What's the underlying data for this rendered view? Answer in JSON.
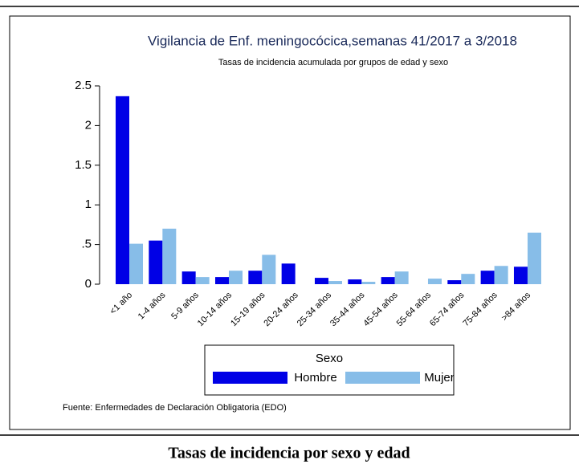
{
  "chart_data": {
    "type": "bar",
    "title": "Vigilancia de Enf. meningocócica,semanas 41/2017 a 3/2018",
    "subtitle": "Tasas de incidencia acumulada por grupos de edad y sexo",
    "categories": [
      "<1 año",
      "1-4 años",
      "5-9 años",
      "10-14 años",
      "15-19 años",
      "20-24 años",
      "25-34 años",
      "35-44 años",
      "45-54 años",
      "55-64 años",
      "65-74 años",
      "75-84 años",
      ">84 años"
    ],
    "series": [
      {
        "name": "Hombre",
        "color": "#0000e6",
        "values": [
          2.37,
          0.55,
          0.16,
          0.09,
          0.17,
          0.26,
          0.08,
          0.06,
          0.09,
          0,
          0.05,
          0.17,
          0.22
        ]
      },
      {
        "name": "Mujer",
        "color": "#87bde8",
        "values": [
          0.51,
          0.7,
          0.09,
          0.17,
          0.37,
          0,
          0.04,
          0.03,
          0.16,
          0.07,
          0.13,
          0.23,
          0.65
        ]
      }
    ],
    "ylim": [
      0,
      2.5
    ],
    "yticks": [
      0,
      {
        "value": 0.5,
        "label": ".5"
      },
      1,
      1.5,
      2,
      2.5
    ],
    "legend_title": "Sexo",
    "source": "Fuente: Enfermedades de Declaración Obligatoria (EDO)"
  },
  "caption": "Tasas de incidencia por sexo y edad"
}
